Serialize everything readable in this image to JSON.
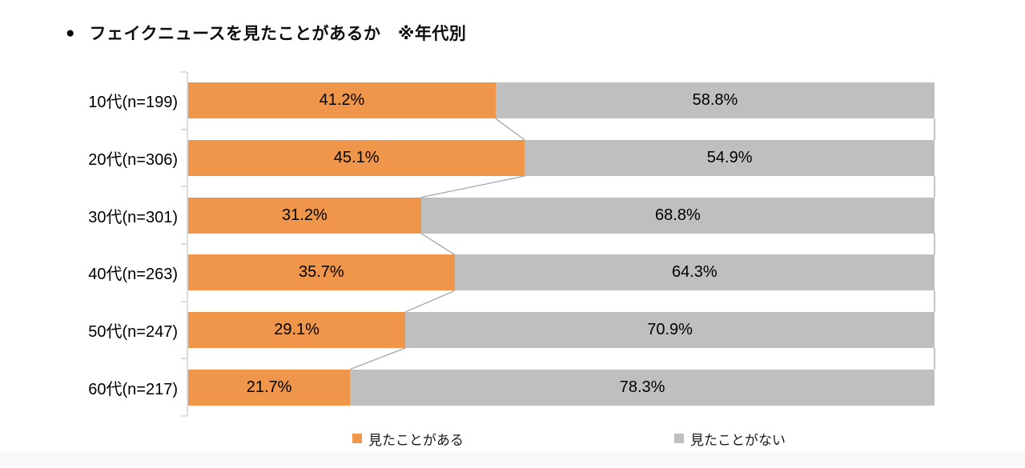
{
  "title": {
    "bullet": "●",
    "text": "フェイクニュースを見たことがあるか　※年代別"
  },
  "colors": {
    "seen": "#F0964B",
    "not_seen": "#BFBFBF",
    "connector": "#A6A6A6",
    "axis": "#DCDCDC",
    "label_text": "#000000",
    "page_edge_strip": "#F8F8F8"
  },
  "legend": {
    "items": [
      {
        "label": "見たことがある",
        "color_key": "seen"
      },
      {
        "label": "見たことがない",
        "color_key": "not_seen"
      }
    ]
  },
  "chart_data": {
    "type": "bar",
    "orientation": "horizontal",
    "stacked": true,
    "title": "フェイクニュースを見たことがあるか ※年代別",
    "categories": [
      "10代(n=199)",
      "20代(n=306)",
      "30代(n=301)",
      "40代(n=263)",
      "50代(n=247)",
      "60代(n=217)"
    ],
    "series": [
      {
        "name": "見たことがある",
        "color": "#F0964B",
        "values": [
          41.2,
          45.1,
          31.2,
          35.7,
          29.1,
          21.7
        ]
      },
      {
        "name": "見たことがない",
        "color": "#BFBFBF",
        "values": [
          58.8,
          54.9,
          68.8,
          64.3,
          70.9,
          78.3
        ]
      }
    ],
    "value_suffix": "%",
    "value_decimals": 1,
    "xlim": [
      0,
      100
    ],
    "data_labels": "center",
    "series_lines": true,
    "grid": false,
    "legend_position": "bottom"
  }
}
